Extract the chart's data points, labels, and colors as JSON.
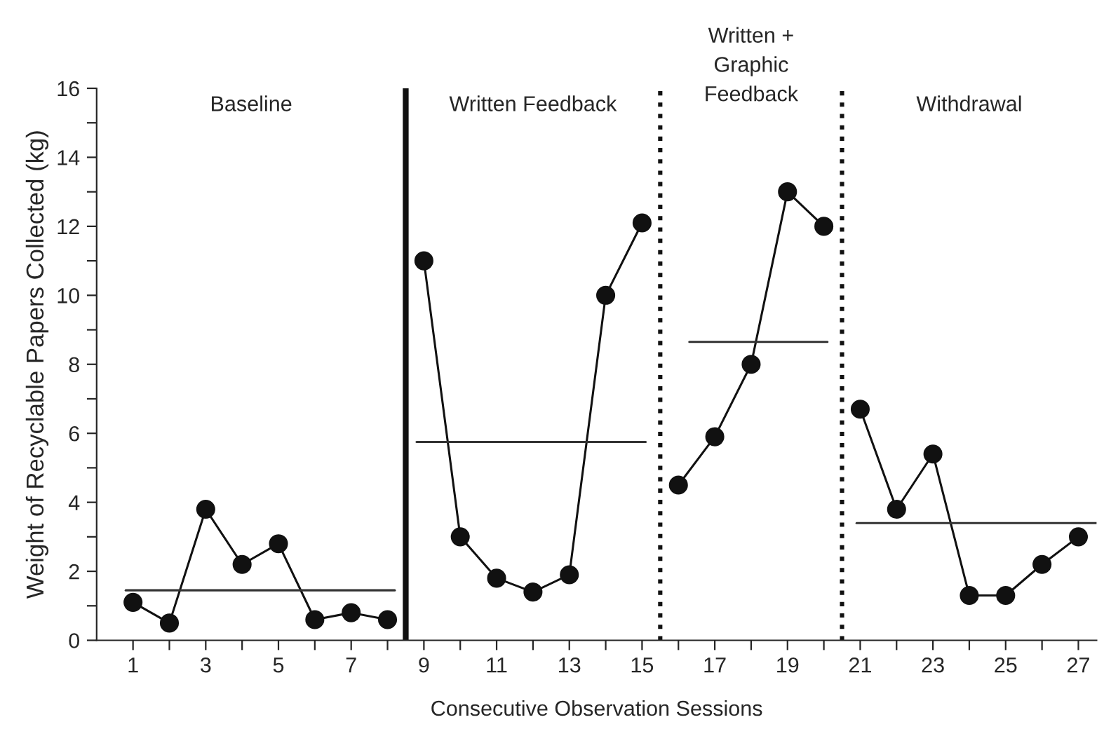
{
  "chart_data": {
    "type": "line",
    "xlabel": "Consecutive Observation Sessions",
    "ylabel": "Weight of Recyclable Papers Collected (kg)",
    "annotations": [
      "Baseline",
      "Written Feedback",
      "Written +\nGraphic\nFeedback",
      "Withdrawal"
    ],
    "series": [
      {
        "color": "#111111",
        "marker": "circle",
        "x": [
          1,
          2,
          3,
          4,
          5,
          6,
          7,
          8
        ],
        "values": [
          1.1,
          0.5,
          3.8,
          2.2,
          2.8,
          0.6,
          0.8,
          0.6
        ]
      },
      {
        "color": "#111111",
        "marker": "circle",
        "x": [
          9,
          10,
          11,
          12,
          13,
          14,
          15
        ],
        "values": [
          11.0,
          3.0,
          1.8,
          1.4,
          1.9,
          10.0,
          12.1
        ]
      },
      {
        "color": "#111111",
        "marker": "circle",
        "x": [
          16,
          17,
          18,
          19,
          20
        ],
        "values": [
          4.5,
          5.9,
          8.0,
          13.0,
          12.0
        ]
      },
      {
        "color": "#111111",
        "marker": "circle",
        "x": [
          21,
          22,
          23,
          24,
          25,
          26,
          27
        ],
        "values": [
          6.7,
          3.8,
          5.4,
          1.3,
          1.3,
          2.2,
          3.0
        ]
      },
      {
        "color": "#333333",
        "marker": "none",
        "x": [
          0.8,
          8.2
        ],
        "values": [
          1.45,
          1.45
        ]
      },
      {
        "color": "#333333",
        "marker": "none",
        "x": [
          8.8,
          15.1
        ],
        "values": [
          5.75,
          5.75
        ]
      },
      {
        "color": "#333333",
        "marker": "none",
        "x": [
          16.3,
          20.1
        ],
        "values": [
          8.65,
          8.65
        ]
      },
      {
        "color": "#333333",
        "marker": "none",
        "x": [
          20.9,
          27.5
        ],
        "values": [
          3.4,
          3.4
        ]
      }
    ],
    "ref_lines": [
      {
        "axis": "x",
        "value": 8.5,
        "line_style": "solid",
        "color": "#111111"
      },
      {
        "axis": "x",
        "value": 15.5,
        "line_style": "dotted",
        "color": "#111111"
      },
      {
        "axis": "x",
        "value": 20.5,
        "line_style": "dotted",
        "color": "#111111"
      }
    ],
    "xlim": [
      0,
      27.5
    ],
    "xticks": [
      1,
      {
        "value": 2,
        "label": null
      },
      3,
      {
        "value": 4,
        "label": null
      },
      5,
      {
        "value": 6,
        "label": null
      },
      7,
      {
        "value": 8,
        "label": null
      },
      9,
      {
        "value": 10,
        "label": null
      },
      11,
      {
        "value": 12,
        "label": null
      },
      13,
      {
        "value": 14,
        "label": null
      },
      15,
      {
        "value": 16,
        "label": null
      },
      17,
      {
        "value": 18,
        "label": null
      },
      19,
      {
        "value": 20,
        "label": null
      },
      21,
      {
        "value": 22,
        "label": null
      },
      23,
      {
        "value": 24,
        "label": null
      },
      25,
      {
        "value": 26,
        "label": null
      },
      27
    ],
    "ylim": [
      0,
      16
    ],
    "yticks": [
      0,
      {
        "value": 1,
        "label": null
      },
      2,
      {
        "value": 3,
        "label": null
      },
      4,
      {
        "value": 5,
        "label": null
      },
      6,
      {
        "value": 7,
        "label": null
      },
      8,
      {
        "value": 9,
        "label": null
      },
      10,
      {
        "value": 11,
        "label": null
      },
      12,
      {
        "value": 13,
        "label": null
      },
      14,
      {
        "value": 15,
        "label": null
      },
      16
    ],
    "grid": false,
    "legend": false
  }
}
